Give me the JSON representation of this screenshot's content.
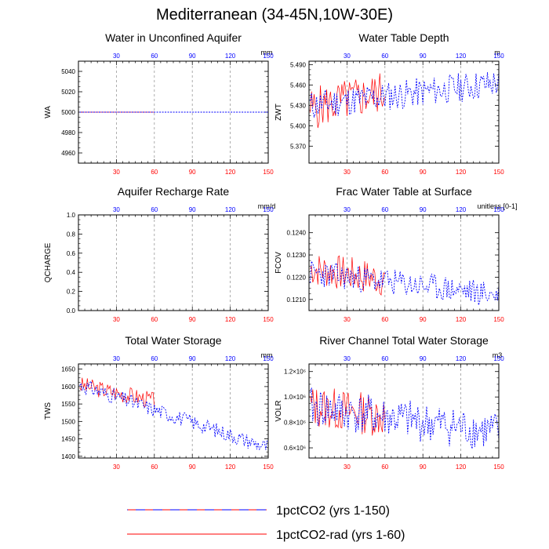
{
  "page": {
    "title": "Mediterranean (34-45N,10W-30E)"
  },
  "legend": [
    {
      "label": "1pctCO2 (yrs 1-150)",
      "style": "dashed",
      "color": "#0000ff"
    },
    {
      "label": "1pctCO2-rad (yrs 1-60)",
      "style": "solid",
      "color": "#ff0000"
    }
  ],
  "colors": {
    "series_a": "#0000ff",
    "series_b": "#ff0000",
    "top_ticks": "#0000ff",
    "bottom_ticks": "#ff0000",
    "grid": "#999999"
  },
  "chart_data": [
    {
      "type": "line",
      "title": "Water in Unconfined Aquifer",
      "ylabel": "WA",
      "unit": "mm",
      "xlim": [
        0,
        150
      ],
      "ylim": [
        4950,
        5050
      ],
      "yticks": [
        4960,
        4980,
        5000,
        5020,
        5040
      ],
      "ytick_labels": [
        "4960",
        "4980",
        "5000",
        "5020",
        "5040"
      ],
      "xticks": [
        30,
        60,
        90,
        120,
        150
      ],
      "series": [
        {
          "kind": "flat",
          "value": 5000,
          "length": 150
        },
        {
          "kind": "flat",
          "value": 5000,
          "length": 60
        }
      ]
    },
    {
      "type": "line",
      "title": "Water Table Depth",
      "ylabel": "ZWT",
      "unit": "m",
      "xlim": [
        0,
        150
      ],
      "ylim": [
        5.345,
        5.495
      ],
      "yticks": [
        5.37,
        5.4,
        5.43,
        5.46,
        5.49
      ],
      "ytick_labels": [
        "5.370",
        "5.400",
        "5.430",
        "5.460",
        "5.490"
      ],
      "xticks": [
        30,
        60,
        90,
        120,
        150
      ],
      "series": [
        {
          "kind": "noise",
          "n": 150,
          "start": 5.43,
          "end": 5.463,
          "amp": 0.022,
          "seed": 11
        },
        {
          "kind": "noise",
          "n": 60,
          "start": 5.425,
          "end": 5.45,
          "amp": 0.032,
          "seed": 5
        }
      ]
    },
    {
      "type": "line",
      "title": "Aquifer Recharge Rate",
      "ylabel": "QCHARGE",
      "unit": "mm/d",
      "xlim": [
        0,
        150
      ],
      "ylim": [
        0,
        1
      ],
      "yticks": [
        0,
        0.2,
        0.4,
        0.6,
        0.8,
        1.0
      ],
      "ytick_labels": [
        "0.0",
        "0.2",
        "0.4",
        "0.6",
        "0.8",
        "1.0"
      ],
      "xticks": [
        30,
        60,
        90,
        120,
        150
      ],
      "series": []
    },
    {
      "type": "line",
      "title": "Frac Water Table at Surface",
      "ylabel": "FCOV",
      "unit": "unitless [0-1]",
      "xlim": [
        0,
        150
      ],
      "ylim": [
        0.1205,
        0.1248
      ],
      "yticks": [
        0.121,
        0.122,
        0.123,
        0.124
      ],
      "ytick_labels": [
        "0.1210",
        "0.1220",
        "0.1230",
        "0.1240"
      ],
      "xticks": [
        30,
        60,
        90,
        120,
        150
      ],
      "series": [
        {
          "kind": "noise",
          "n": 150,
          "start": 0.1222,
          "end": 0.1212,
          "amp": 0.0006,
          "seed": 23
        },
        {
          "kind": "noise",
          "n": 60,
          "start": 0.1224,
          "end": 0.1219,
          "amp": 0.0008,
          "seed": 7
        }
      ]
    },
    {
      "type": "line",
      "title": "Total Water Storage",
      "ylabel": "TWS",
      "unit": "mm",
      "xlim": [
        0,
        150
      ],
      "ylim": [
        1395,
        1665
      ],
      "yticks": [
        1400,
        1450,
        1500,
        1550,
        1600,
        1650
      ],
      "ytick_labels": [
        "1400",
        "1450",
        "1500",
        "1550",
        "1600",
        "1650"
      ],
      "xticks": [
        30,
        60,
        90,
        120,
        150
      ],
      "series": [
        {
          "kind": "noise",
          "n": 150,
          "start": 1605,
          "end": 1425,
          "amp": 22,
          "seed": 31
        },
        {
          "kind": "noise",
          "n": 60,
          "start": 1605,
          "end": 1560,
          "amp": 25,
          "seed": 3
        }
      ]
    },
    {
      "type": "line",
      "title": "River Channel Total Water Storage",
      "ylabel": "VOLR",
      "unit": "m3",
      "xlim": [
        0,
        150
      ],
      "ylim": [
        520000,
        1260000
      ],
      "yticks": [
        600000,
        800000,
        1000000,
        1200000
      ],
      "ytick_labels": [
        "0.6×10⁶",
        "0.8×10⁶",
        "1.0×10⁶",
        "1.2×10⁶"
      ],
      "xticks": [
        30,
        60,
        90,
        120,
        150
      ],
      "series": [
        {
          "kind": "noise",
          "n": 150,
          "start": 920000,
          "end": 720000,
          "amp": 160000,
          "seed": 41
        },
        {
          "kind": "noise",
          "n": 60,
          "start": 930000,
          "end": 850000,
          "amp": 170000,
          "seed": 13
        }
      ]
    }
  ]
}
